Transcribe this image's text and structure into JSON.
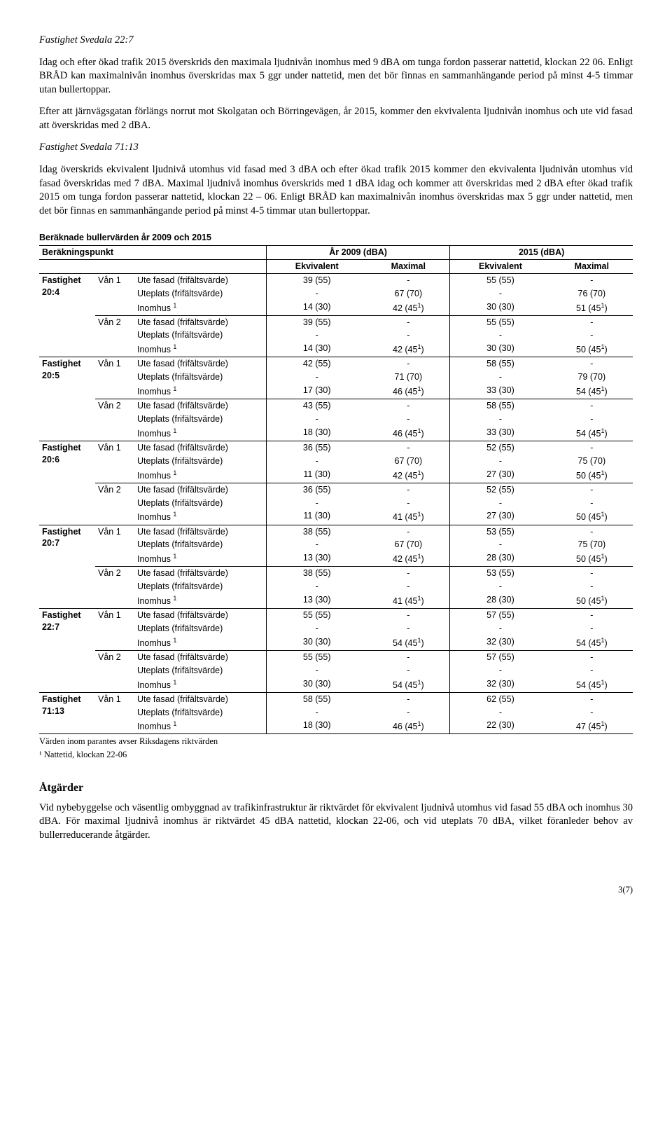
{
  "p1_title": "Fastighet Svedala 22:7",
  "p1": "Idag och efter ökad trafik 2015 överskrids den maximala ljudnivån inomhus med 9 dBA om tunga fordon passerar nattetid, klockan 22 06. Enligt BRÅD kan maximalnivån inomhus överskridas max 5 ggr under nattetid, men det bör finnas en sammanhängande period på minst 4-5 timmar utan bullertoppar.",
  "p2": "Efter att järnvägsgatan förlängs norrut mot Skolgatan och Börringevägen, år 2015, kommer den ekvivalenta ljudnivån inomhus och ute vid fasad att överskridas med 2 dBA.",
  "p3_title": "Fastighet Svedala 71:13",
  "p3": "Idag överskrids ekvivalent ljudnivå utomhus vid fasad med 3 dBA och efter ökad trafik 2015 kommer den ekvivalenta ljudnivån utomhus vid fasad överskridas med 7 dBA. Maximal ljudnivå inomhus överskrids med 1 dBA idag och kommer att överskridas med 2 dBA efter ökad trafik 2015 om tunga fordon passerar nattetid, klockan 22 – 06. Enligt BRÅD kan maximalnivån inomhus överskridas max 5 ggr under nattetid, men det bör finnas en sammanhängande period på minst 4-5 timmar utan bullertoppar.",
  "table_caption": "Beräknade bullervärden år 2009 och 2015",
  "hdr": {
    "bp": "Beräkningspunkt",
    "y2009": "År 2009 (dBA)",
    "y2015": "2015 (dBA)",
    "ekv": "Ekvivalent",
    "max": "Maximal"
  },
  "row_labels": {
    "ute": "Ute fasad (frifältsvärde)",
    "uteplats": "Uteplats (frifältsvärde)",
    "inomhus": "Inomhus ",
    "van1": "Vån 1",
    "van2": "Vån 2"
  },
  "groups": [
    {
      "name": "Fastighet 20:4",
      "floors": [
        {
          "label": "Vån 1",
          "rows": [
            [
              "Ute fasad (frifältsvärde)",
              "39 (55)",
              "-",
              "55 (55)",
              "-"
            ],
            [
              "Uteplats (frifältsvärde)",
              "-",
              "67 (70)",
              "-",
              "76 (70)"
            ],
            [
              "Inomhus ¹",
              "14 (30)",
              "42 (45¹)",
              "30 (30)",
              "51 (45¹)"
            ]
          ]
        },
        {
          "label": "Vån 2",
          "rows": [
            [
              "Ute fasad (frifältsvärde)",
              "39 (55)",
              "-",
              "55 (55)",
              "-"
            ],
            [
              "Uteplats (frifältsvärde)",
              "-",
              "-",
              "-",
              "-"
            ],
            [
              "Inomhus ¹",
              "14 (30)",
              "42 (45¹)",
              "30 (30)",
              "50 (45¹)"
            ]
          ]
        }
      ]
    },
    {
      "name": "Fastighet 20:5",
      "floors": [
        {
          "label": "Vån 1",
          "rows": [
            [
              "Ute fasad (frifältsvärde)",
              "42 (55)",
              "-",
              "58 (55)",
              "-"
            ],
            [
              "Uteplats (frifältsvärde)",
              "-",
              "71 (70)",
              "-",
              "79 (70)"
            ],
            [
              "Inomhus ¹",
              "17 (30)",
              "46 (45¹)",
              "33 (30)",
              "54 (45¹)"
            ]
          ]
        },
        {
          "label": "Vån 2",
          "rows": [
            [
              "Ute fasad (frifältsvärde)",
              "43 (55)",
              "-",
              "58 (55)",
              "-"
            ],
            [
              "Uteplats (frifältsvärde)",
              "-",
              "-",
              "-",
              "-"
            ],
            [
              "Inomhus ¹",
              "18 (30)",
              "46 (45¹)",
              "33 (30)",
              "54 (45¹)"
            ]
          ]
        }
      ]
    },
    {
      "name": "Fastighet 20:6",
      "floors": [
        {
          "label": "Vån 1",
          "rows": [
            [
              "Ute fasad (frifältsvärde)",
              "36 (55)",
              "-",
              "52 (55)",
              "-"
            ],
            [
              "Uteplats (frifältsvärde)",
              "-",
              "67 (70)",
              "-",
              "75 (70)"
            ],
            [
              "Inomhus ¹",
              "11 (30)",
              "42 (45¹)",
              "27 (30)",
              "50 (45¹)"
            ]
          ]
        },
        {
          "label": "Vån 2",
          "rows": [
            [
              "Ute fasad (frifältsvärde)",
              "36 (55)",
              "-",
              "52 (55)",
              "-"
            ],
            [
              "Uteplats (frifältsvärde)",
              "-",
              "-",
              "-",
              "-"
            ],
            [
              "Inomhus ¹",
              "11 (30)",
              "41 (45¹)",
              "27 (30)",
              "50 (45¹)"
            ]
          ]
        }
      ]
    },
    {
      "name": "Fastighet 20:7",
      "floors": [
        {
          "label": "Vån 1",
          "rows": [
            [
              "Ute fasad (frifältsvärde)",
              "38 (55)",
              "-",
              "53 (55)",
              "-"
            ],
            [
              "Uteplats (frifältsvärde)",
              "-",
              "67 (70)",
              "-",
              "75 (70)"
            ],
            [
              "Inomhus ¹",
              "13 (30)",
              "42 (45¹)",
              "28 (30)",
              "50 (45¹)"
            ]
          ]
        },
        {
          "label": "Vån 2",
          "rows": [
            [
              "Ute fasad (frifältsvärde)",
              "38 (55)",
              "-",
              "53 (55)",
              "-"
            ],
            [
              "Uteplats (frifältsvärde)",
              "-",
              "-",
              "-",
              "-"
            ],
            [
              "Inomhus ¹",
              "13 (30)",
              "41 (45¹)",
              "28 (30)",
              "50 (45¹)"
            ]
          ]
        }
      ]
    },
    {
      "name": "Fastighet 22:7",
      "floors": [
        {
          "label": "Vån 1",
          "rows": [
            [
              "Ute fasad (frifältsvärde)",
              "55 (55)",
              "-",
              "57 (55)",
              "-"
            ],
            [
              "Uteplats (frifältsvärde)",
              "-",
              "-",
              "-",
              "-"
            ],
            [
              "Inomhus ¹",
              "30 (30)",
              "54 (45¹)",
              "32 (30)",
              "54 (45¹)"
            ]
          ]
        },
        {
          "label": "Vån 2",
          "rows": [
            [
              "Ute fasad (frifältsvärde)",
              "55 (55)",
              "-",
              "57 (55)",
              "-"
            ],
            [
              "Uteplats (frifältsvärde)",
              "-",
              "-",
              "-",
              "-"
            ],
            [
              "Inomhus ¹",
              "30 (30)",
              "54 (45¹)",
              "32 (30)",
              "54 (45¹)"
            ]
          ]
        }
      ]
    },
    {
      "name": "Fastighet 71:13",
      "floors": [
        {
          "label": "Vån 1",
          "rows": [
            [
              "Ute fasad (frifältsvärde)",
              "58 (55)",
              "-",
              "62 (55)",
              "-"
            ],
            [
              "Uteplats (frifältsvärde)",
              "-",
              "-",
              "-",
              "-"
            ],
            [
              "Inomhus ¹",
              "18 (30)",
              "46 (45¹)",
              "22 (30)",
              "47 (45¹)"
            ]
          ]
        }
      ]
    }
  ],
  "footnote1": "Värden inom parantes avser Riksdagens riktvärden",
  "footnote2": "¹ Nattetid, klockan 22-06",
  "atgard_heading": "Åtgärder",
  "atgard_p": "Vid nybebyggelse och väsentlig ombyggnad av trafikinfrastruktur är riktvärdet för ekvivalent ljudnivå utomhus vid fasad 55 dBA och inomhus 30 dBA. För maximal ljudnivå inomhus är riktvärdet 45 dBA nattetid, klockan 22-06, och vid uteplats 70 dBA, vilket föranleder behov av bullerreducerande åtgärder.",
  "page_num": "3(7)"
}
